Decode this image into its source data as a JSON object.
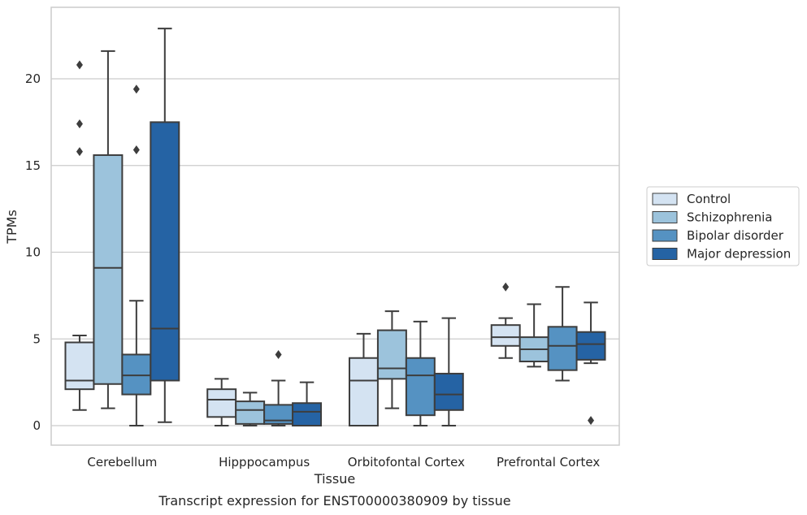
{
  "chart_data": {
    "type": "box",
    "caption": "Transcript expression for ENST00000380909 by tissue",
    "xlabel": "Tissue",
    "ylabel": "TPMs",
    "ylim": [
      -1.1,
      24.1
    ],
    "yticks": [
      0,
      5,
      10,
      15,
      20
    ],
    "grid": "horizontal",
    "legend_position": "right",
    "categories": [
      "Cerebellum",
      "Hipppocampus",
      "Orbitofontal Cortex",
      "Prefrontal Cortex"
    ],
    "series": [
      {
        "name": "Control",
        "color": "#d4e3f2",
        "boxes": [
          {
            "min": 0.9,
            "q1": 2.1,
            "median": 2.6,
            "q3": 4.8,
            "max": 5.2,
            "outliers": [
              15.8,
              17.4,
              20.8
            ]
          },
          {
            "min": 0.0,
            "q1": 0.5,
            "median": 1.5,
            "q3": 2.1,
            "max": 2.7,
            "outliers": []
          },
          {
            "min": 0.0,
            "q1": 0.0,
            "median": 2.6,
            "q3": 3.9,
            "max": 5.3,
            "outliers": []
          },
          {
            "min": 3.9,
            "q1": 4.6,
            "median": 5.1,
            "q3": 5.8,
            "max": 6.2,
            "outliers": [
              8.0
            ]
          }
        ]
      },
      {
        "name": "Schizophrenia",
        "color": "#9cc3dc",
        "boxes": [
          {
            "min": 1.0,
            "q1": 2.4,
            "median": 9.1,
            "q3": 15.6,
            "max": 21.6,
            "outliers": []
          },
          {
            "min": 0.0,
            "q1": 0.1,
            "median": 0.9,
            "q3": 1.4,
            "max": 1.9,
            "outliers": []
          },
          {
            "min": 1.0,
            "q1": 2.7,
            "median": 3.3,
            "q3": 5.5,
            "max": 6.6,
            "outliers": []
          },
          {
            "min": 3.4,
            "q1": 3.7,
            "median": 4.4,
            "q3": 5.1,
            "max": 7.0,
            "outliers": []
          }
        ]
      },
      {
        "name": "Bipolar disorder",
        "color": "#5592c2",
        "boxes": [
          {
            "min": 0.0,
            "q1": 1.8,
            "median": 2.9,
            "q3": 4.1,
            "max": 7.2,
            "outliers": [
              15.9,
              19.4
            ]
          },
          {
            "min": 0.0,
            "q1": 0.1,
            "median": 0.3,
            "q3": 1.2,
            "max": 2.6,
            "outliers": [
              4.1
            ]
          },
          {
            "min": 0.0,
            "q1": 0.6,
            "median": 2.9,
            "q3": 3.9,
            "max": 6.0,
            "outliers": []
          },
          {
            "min": 2.6,
            "q1": 3.2,
            "median": 4.6,
            "q3": 5.7,
            "max": 8.0,
            "outliers": []
          }
        ]
      },
      {
        "name": "Major depression",
        "color": "#2563a4",
        "boxes": [
          {
            "min": 0.2,
            "q1": 2.6,
            "median": 5.6,
            "q3": 17.5,
            "max": 22.9,
            "outliers": []
          },
          {
            "min": 0.0,
            "q1": 0.0,
            "median": 0.8,
            "q3": 1.3,
            "max": 2.5,
            "outliers": []
          },
          {
            "min": 0.0,
            "q1": 0.9,
            "median": 1.8,
            "q3": 3.0,
            "max": 6.2,
            "outliers": []
          },
          {
            "min": 3.6,
            "q1": 3.8,
            "median": 4.7,
            "q3": 5.4,
            "max": 7.1,
            "outliers": [
              0.3
            ]
          }
        ]
      }
    ]
  }
}
